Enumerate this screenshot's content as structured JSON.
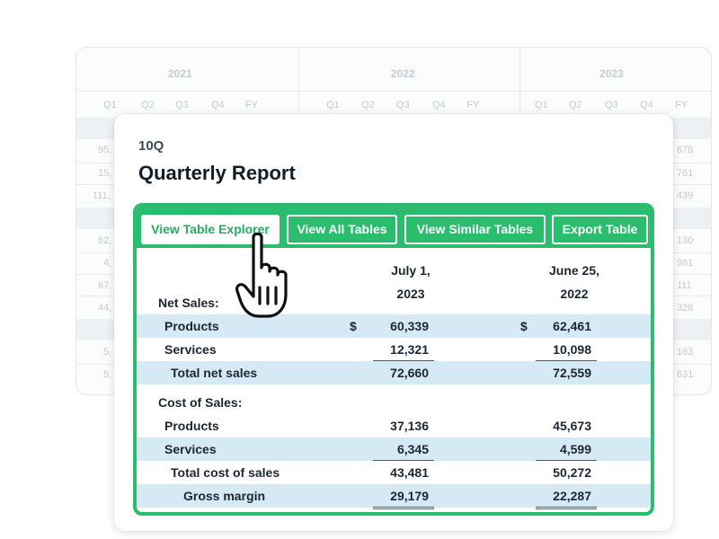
{
  "background_table": {
    "years": [
      "2021",
      "2022",
      "2023"
    ],
    "quarters": [
      "Q1",
      "Q2",
      "Q3",
      "Q4",
      "FY"
    ],
    "left_values": [
      "95,",
      "15,",
      "111,",
      "62,",
      "4,",
      "67,",
      "44,",
      "5,",
      "5,"
    ],
    "right_values": [
      "678",
      "761",
      "439",
      "130",
      "981",
      "111",
      "328",
      "163",
      "631"
    ]
  },
  "document": {
    "type": "10Q",
    "title": "Quarterly Report"
  },
  "toolbar": {
    "buttons": [
      {
        "label": "View Table Explorer",
        "active": true
      },
      {
        "label": "View All Tables",
        "active": false
      },
      {
        "label": "View Similar Tables",
        "active": false
      },
      {
        "label": "Export Table",
        "active": false
      }
    ]
  },
  "table": {
    "columns": [
      "July 1,\n2023",
      "June 25,\n2022"
    ],
    "currency_symbol": "$",
    "sections": {
      "net_sales": {
        "label": "Net Sales:",
        "rows": [
          {
            "label": "Products",
            "values": [
              "60,339",
              "62,461"
            ]
          },
          {
            "label": "Services",
            "values": [
              "12,321",
              "10,098"
            ]
          },
          {
            "label": "Total net sales",
            "values": [
              "72,660",
              "72,559"
            ]
          }
        ]
      },
      "cost_of_sales": {
        "label": "Cost of Sales:",
        "rows": [
          {
            "label": "Products",
            "values": [
              "37,136",
              "45,673"
            ]
          },
          {
            "label": "Services",
            "values": [
              "6,345",
              "4,599"
            ]
          },
          {
            "label": "Total cost of sales",
            "values": [
              "43,481",
              "50,272"
            ]
          },
          {
            "label": "Gross margin",
            "values": [
              "29,179",
              "22,287"
            ]
          }
        ]
      }
    }
  },
  "colors": {
    "accent": "#2bbd6e",
    "row_shade": "#d6eaf5"
  },
  "icons": {
    "cursor": "hand-pointer-icon"
  }
}
